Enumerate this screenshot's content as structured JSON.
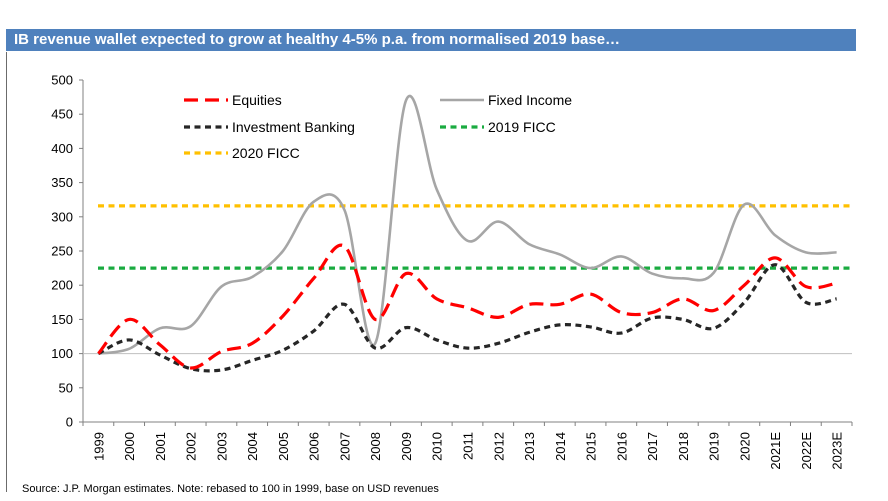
{
  "title": "IB revenue wallet expected to grow at healthy 4-5% p.a. from normalised 2019 base…",
  "source": "Source: J.P. Morgan estimates. Note: rebased to 100 in 1999, base on USD revenues",
  "chart_data": {
    "type": "line",
    "title": "IB revenue wallet expected to grow at healthy 4-5% p.a. from normalised 2019 base…",
    "xlabel": "",
    "ylabel": "",
    "ylim": [
      0,
      500
    ],
    "yticks": [
      0,
      50,
      100,
      150,
      200,
      250,
      300,
      350,
      400,
      450,
      500
    ],
    "grid": false,
    "legend_position": "top",
    "categories": [
      "1999",
      "2000",
      "2001",
      "2002",
      "2003",
      "2004",
      "2005",
      "2006",
      "2007",
      "2008",
      "2009",
      "2010",
      "2011",
      "2012",
      "2013",
      "2014",
      "2015",
      "2016",
      "2017",
      "2018",
      "2019",
      "2020",
      "2021E",
      "2022E",
      "2023E"
    ],
    "series": [
      {
        "name": "Equities",
        "color": "#ff0000",
        "style": "long-dash",
        "values": [
          100,
          150,
          113,
          79,
          103,
          115,
          155,
          210,
          257,
          150,
          217,
          180,
          167,
          153,
          172,
          172,
          187,
          160,
          160,
          180,
          163,
          200,
          240,
          198,
          203
        ]
      },
      {
        "name": "Fixed Income",
        "color": "#a6a6a6",
        "style": "solid",
        "values": [
          100,
          107,
          137,
          140,
          198,
          212,
          250,
          322,
          310,
          115,
          470,
          340,
          265,
          293,
          260,
          245,
          225,
          242,
          217,
          210,
          218,
          318,
          273,
          248,
          248
        ]
      },
      {
        "name": "Investment Banking",
        "color": "#262626",
        "style": "dash",
        "values": [
          100,
          120,
          98,
          78,
          76,
          90,
          105,
          133,
          172,
          108,
          138,
          120,
          108,
          115,
          131,
          142,
          139,
          130,
          152,
          150,
          137,
          175,
          230,
          175,
          180
        ]
      },
      {
        "name": "2019 FICC",
        "color": "#1aab40",
        "style": "dash",
        "values": [
          225,
          225,
          225,
          225,
          225,
          225,
          225,
          225,
          225,
          225,
          225,
          225,
          225,
          225,
          225,
          225,
          225,
          225,
          225,
          225,
          225,
          225,
          225,
          225,
          225
        ]
      },
      {
        "name": "2020 FICC",
        "color": "#ffc000",
        "style": "dash",
        "values": [
          316,
          316,
          316,
          316,
          316,
          316,
          316,
          316,
          316,
          316,
          316,
          316,
          316,
          316,
          316,
          316,
          316,
          316,
          316,
          316,
          316,
          316,
          316,
          316,
          316
        ]
      }
    ]
  }
}
